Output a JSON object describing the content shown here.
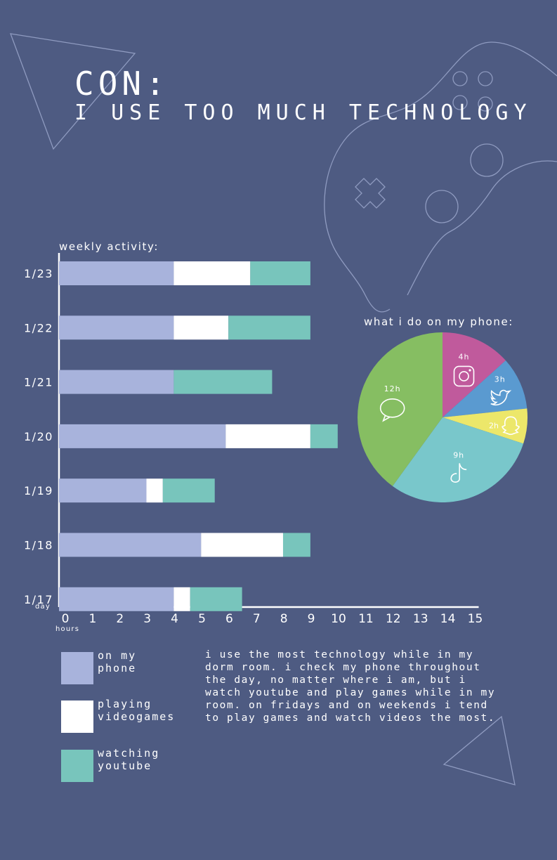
{
  "header": {
    "title_line1": "CON:",
    "title_line2": "I USE TOO MUCH TECHNOLOGY"
  },
  "colors": {
    "background": "#4e5b82",
    "phone": "#a8b3dc",
    "videogames": "#ffffff",
    "youtube": "#78c5bc",
    "instagram": "#c05a9c",
    "twitter": "#5a9ad0",
    "snapchat": "#ece76a",
    "tiktok": "#79c7cb",
    "messages": "#86be62",
    "line": "#ffffff"
  },
  "chart_data": [
    {
      "type": "bar",
      "orientation": "horizontal",
      "stacked": true,
      "title": "weekly activity:",
      "xlabel": "hours",
      "ylabel": "day",
      "xlim": [
        0,
        15
      ],
      "xticks": [
        "0",
        "1",
        "2",
        "3",
        "4",
        "5",
        "6",
        "7",
        "8",
        "9",
        "10",
        "11",
        "12",
        "13",
        "14",
        "15"
      ],
      "categories": [
        "1/23",
        "1/22",
        "1/21",
        "1/20",
        "1/19",
        "1/18",
        "1/17"
      ],
      "series": [
        {
          "name": "on my phone",
          "color_key": "phone",
          "values": [
            4.2,
            4.2,
            4.2,
            6.1,
            3.2,
            5.2,
            4.2
          ]
        },
        {
          "name": "playing videogames",
          "color_key": "videogames",
          "values": [
            2.8,
            2.0,
            0,
            3.1,
            0.6,
            3.0,
            0.6
          ]
        },
        {
          "name": "watching youtube",
          "color_key": "youtube",
          "values": [
            2.2,
            3.0,
            3.6,
            1.0,
            1.9,
            1.0,
            1.9
          ]
        }
      ]
    },
    {
      "type": "pie",
      "title": "what i do on my phone:",
      "slices": [
        {
          "label": "4h",
          "value": 4,
          "icon": "instagram-icon",
          "color_key": "instagram"
        },
        {
          "label": "3h",
          "value": 3,
          "icon": "twitter-icon",
          "color_key": "twitter"
        },
        {
          "label": "2h",
          "value": 2,
          "icon": "snapchat-icon",
          "color_key": "snapchat"
        },
        {
          "label": "9h",
          "value": 9,
          "icon": "tiktok-icon",
          "color_key": "tiktok"
        },
        {
          "label": "12h",
          "value": 12,
          "icon": "message-bubble-icon",
          "color_key": "messages"
        }
      ]
    }
  ],
  "legend": [
    {
      "label": "on my\nphone",
      "color_key": "phone"
    },
    {
      "label": "playing\nvideogames",
      "color_key": "videogames"
    },
    {
      "label": "watching\nyoutube",
      "color_key": "youtube"
    }
  ],
  "note": "i use the most technology while in my\ndorm room. i check my phone throughout\nthe day, no matter where i am, but i\nwatch youtube and play games while in my\nroom. on fridays and on weekends i tend\nto play games and watch videos the most."
}
